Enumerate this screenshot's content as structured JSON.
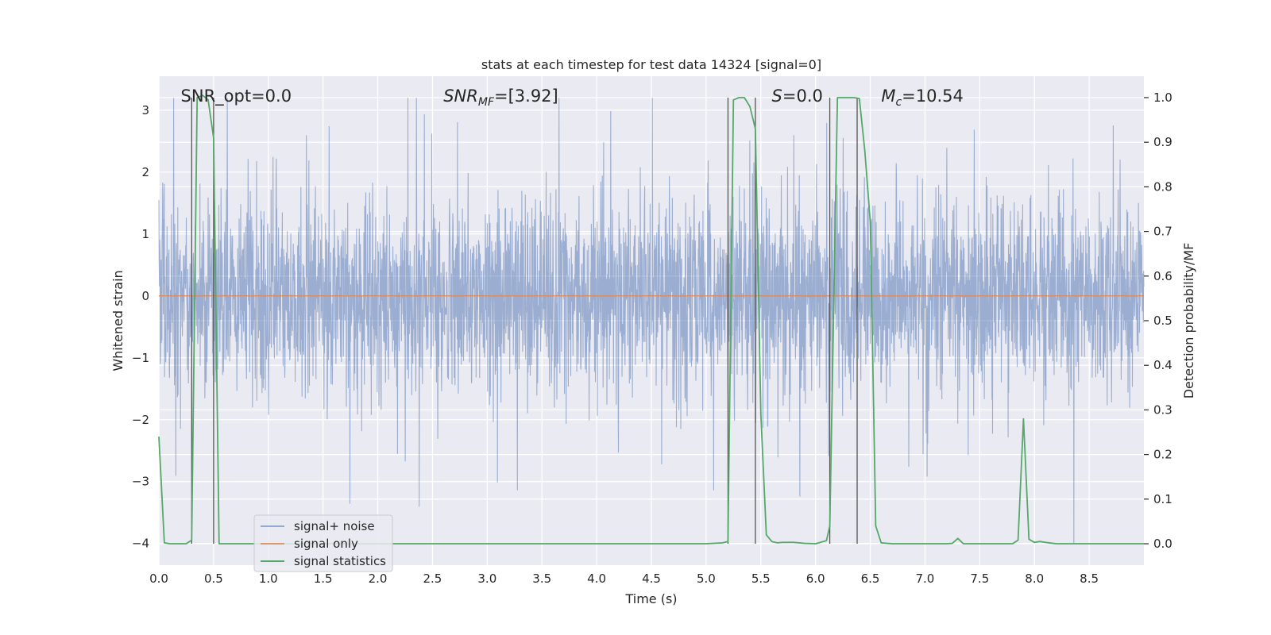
{
  "chart_data": {
    "type": "line",
    "title": "stats at each timestep for test data 14324 [signal=0]",
    "xlabel": "Time (s)",
    "ylabel": "Whitened strain",
    "y2label": "Detection probability/MF",
    "xlim": [
      0,
      9.0
    ],
    "ylim": [
      -4.35,
      3.55
    ],
    "y2lim": [
      -0.048,
      1.048
    ],
    "xticks": [
      0.0,
      0.5,
      1.0,
      1.5,
      2.0,
      2.5,
      3.0,
      3.5,
      4.0,
      4.5,
      5.0,
      5.5,
      6.0,
      6.5,
      7.0,
      7.5,
      8.0,
      8.5
    ],
    "xtick_labels": [
      "0.0",
      "0.5",
      "1.0",
      "1.5",
      "2.0",
      "2.5",
      "3.0",
      "3.5",
      "4.0",
      "4.5",
      "5.0",
      "5.5",
      "6.0",
      "6.5",
      "7.0",
      "7.5",
      "8.0",
      "8.5"
    ],
    "yticks": [
      -4,
      -3,
      -2,
      -1,
      0,
      1,
      2,
      3
    ],
    "ytick_labels": [
      "−4",
      "−3",
      "−2",
      "−1",
      "0",
      "1",
      "2",
      "3"
    ],
    "y2ticks": [
      0.0,
      0.1,
      0.2,
      0.3,
      0.4,
      0.5,
      0.6,
      0.7,
      0.8,
      0.9,
      1.0
    ],
    "y2tick_labels": [
      "0.0",
      "0.1",
      "0.2",
      "0.3",
      "0.4",
      "0.5",
      "0.6",
      "0.7",
      "0.8",
      "0.9",
      "1.0"
    ],
    "grid": true,
    "legend_position": "lower-left",
    "annotations": [
      {
        "text": "SNR_opt=0.0",
        "x": 0.2,
        "y": 3.23
      },
      {
        "text": "SNR",
        "sub": "MF",
        "suffix": "=[3.92]",
        "italic_prefix": true,
        "x": 2.6,
        "y": 3.23
      },
      {
        "text": "S",
        "suffix": "=0.0",
        "italic_prefix": true,
        "x": 5.6,
        "y": 3.23
      },
      {
        "text": "M",
        "sub": "c",
        "suffix": "=10.54",
        "italic_prefix": true,
        "x": 6.6,
        "y": 3.23
      }
    ],
    "vlines": [
      0.3,
      0.5,
      5.2,
      5.45,
      6.13,
      6.38
    ],
    "vline_range": [
      0.0,
      1.0
    ],
    "series": [
      {
        "name": "signal+ noise",
        "color": "#4c72b0",
        "kind": "noise",
        "axis": "left",
        "points": 3600,
        "typical_range": [
          -1.1,
          1.1
        ],
        "extreme_range": [
          -4.0,
          3.2
        ]
      },
      {
        "name": "signal only",
        "color": "#dd8452",
        "axis": "left",
        "x": [
          0.0,
          9.0
        ],
        "y": [
          0.0,
          0.0
        ]
      },
      {
        "name": "signal statistics",
        "color": "#55a868",
        "axis": "right",
        "x": [
          0.0,
          0.05,
          0.1,
          0.2,
          0.25,
          0.3,
          0.35,
          0.4,
          0.45,
          0.5,
          0.55,
          0.6,
          0.8,
          1.0,
          1.5,
          2.0,
          2.5,
          3.0,
          3.5,
          4.0,
          4.5,
          5.0,
          5.15,
          5.2,
          5.25,
          5.3,
          5.35,
          5.4,
          5.45,
          5.5,
          5.55,
          5.6,
          5.65,
          5.7,
          5.8,
          5.9,
          6.0,
          6.1,
          6.13,
          6.2,
          6.3,
          6.35,
          6.4,
          6.45,
          6.5,
          6.55,
          6.6,
          6.7,
          6.8,
          7.0,
          7.1,
          7.2,
          7.25,
          7.3,
          7.35,
          7.4,
          7.5,
          7.6,
          7.7,
          7.8,
          7.85,
          7.9,
          7.95,
          8.0,
          8.05,
          8.1,
          8.2,
          8.3,
          8.5,
          8.7,
          9.0
        ],
        "y": [
          0.24,
          0.002,
          0.0,
          0.0,
          0.0,
          0.008,
          1.0,
          1.005,
          0.995,
          0.91,
          0.0,
          0.0,
          0.0,
          0.0,
          0.0,
          0.0,
          0.0,
          0.0,
          0.0,
          0.0,
          0.0,
          0.0,
          0.002,
          0.005,
          0.995,
          1.0,
          1.0,
          0.98,
          0.93,
          0.29,
          0.02,
          0.005,
          0.002,
          0.003,
          0.003,
          0.001,
          0.0,
          0.007,
          0.04,
          1.0,
          1.0,
          1.0,
          0.998,
          0.88,
          0.72,
          0.04,
          0.002,
          0.0,
          0.0,
          0.0,
          0.0,
          0.0,
          0.001,
          0.012,
          0.0,
          0.0,
          0.0,
          0.0,
          0.0,
          0.0,
          0.008,
          0.28,
          0.01,
          0.003,
          0.005,
          0.003,
          0.0,
          0.0,
          0.0,
          0.0,
          0.0
        ]
      }
    ]
  }
}
